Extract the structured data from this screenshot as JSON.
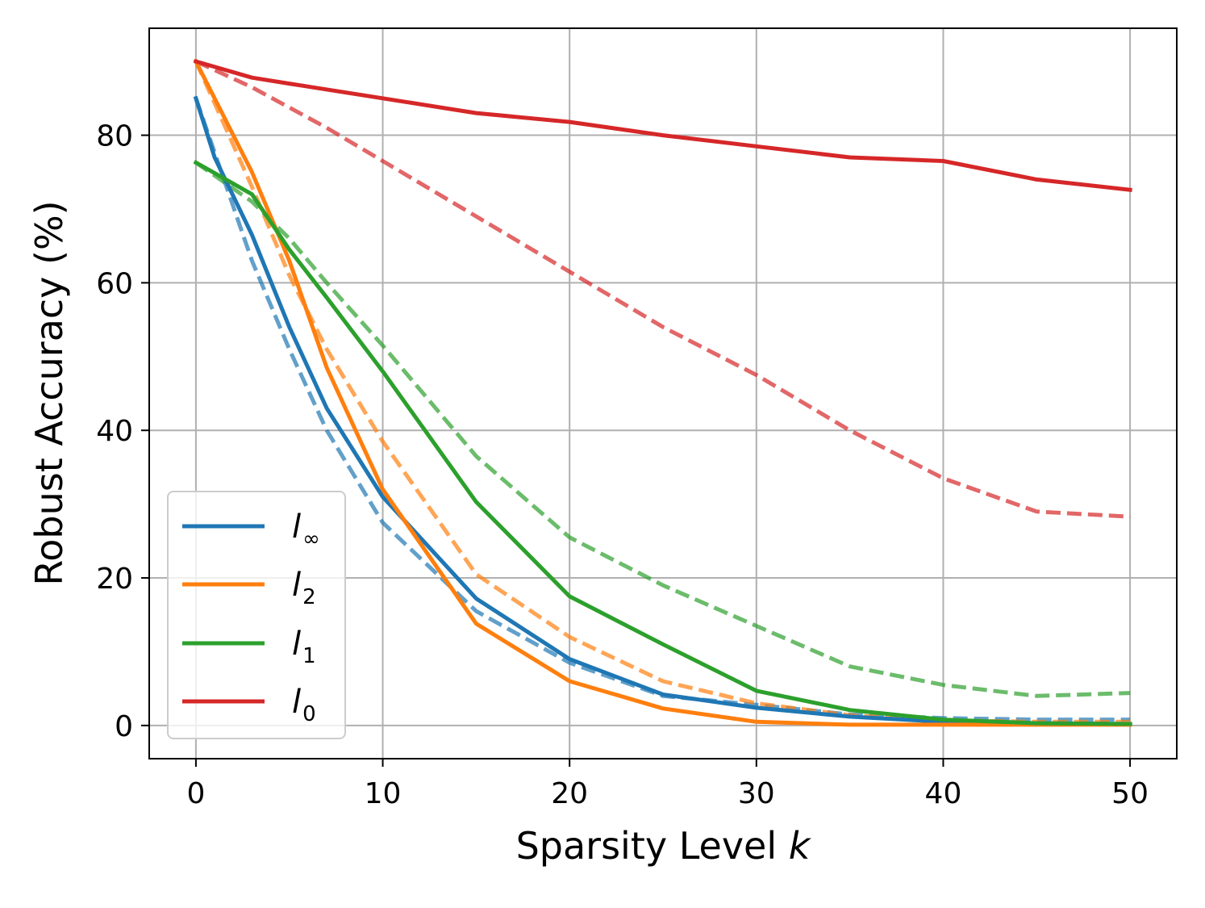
{
  "chart_data": {
    "type": "line",
    "xlabel": "Sparsity Level",
    "xlabel_var": "k",
    "ylabel": "Robust Accuracy (%)",
    "xlim": [
      -2.5,
      52.5
    ],
    "ylim": [
      -4.5,
      94.5
    ],
    "xticks": [
      0,
      10,
      20,
      30,
      40,
      50
    ],
    "yticks": [
      0,
      20,
      40,
      60,
      80
    ],
    "grid": true,
    "legend_placement": "lower-left",
    "series": [
      {
        "name": "∞",
        "color": "#1f77b4",
        "style": "solid",
        "x": [
          0,
          1,
          3,
          5,
          7,
          10,
          15,
          20,
          25,
          30,
          35,
          40,
          45,
          50
        ],
        "y": [
          85,
          77,
          66.5,
          54,
          43,
          31,
          17.2,
          9,
          4.2,
          2.4,
          1.2,
          0.5,
          0.3,
          0.2
        ]
      },
      {
        "name": "2",
        "color": "#ff7f0e",
        "style": "solid",
        "x": [
          0,
          3,
          5,
          7,
          10,
          15,
          20,
          25,
          30,
          35,
          40,
          45,
          50
        ],
        "y": [
          90,
          75,
          63,
          48.5,
          32,
          13.8,
          6,
          2.3,
          0.5,
          0.1,
          0.1,
          0.1,
          0.1
        ]
      },
      {
        "name": "1",
        "color": "#2ca02c",
        "style": "solid",
        "x": [
          0,
          3,
          5,
          7,
          10,
          15,
          20,
          25,
          30,
          35,
          40,
          45,
          50
        ],
        "y": [
          76.3,
          72,
          64.5,
          58,
          48,
          30.3,
          17.5,
          11,
          4.7,
          2.1,
          0.8,
          0.3,
          0.2
        ]
      },
      {
        "name": "0",
        "color": "#d62728",
        "style": "solid",
        "x": [
          0,
          3,
          5,
          10,
          15,
          20,
          25,
          30,
          35,
          40,
          45,
          50
        ],
        "y": [
          90,
          87.8,
          87,
          85,
          83,
          81.8,
          80,
          78.5,
          77,
          76.5,
          74,
          72.6
        ]
      },
      {
        "color": "#1f77b4",
        "style": "dashed",
        "x": [
          0,
          3,
          5,
          7,
          10,
          15,
          20,
          25,
          30,
          35,
          40,
          45,
          50
        ],
        "y": [
          85,
          63,
          51,
          40,
          27.5,
          15.5,
          8.5,
          4,
          2.8,
          1.5,
          1,
          0.8,
          0.8
        ]
      },
      {
        "color": "#ff7f0e",
        "style": "dashed",
        "x": [
          0,
          3,
          5,
          7,
          10,
          15,
          20,
          25,
          30,
          35,
          40,
          45,
          50
        ],
        "y": [
          90,
          73,
          61,
          51,
          38.5,
          20.5,
          12,
          6,
          3,
          1.4,
          0.7,
          0.5,
          0.5
        ]
      },
      {
        "color": "#2ca02c",
        "style": "dashed",
        "x": [
          0,
          3,
          5,
          7,
          10,
          15,
          20,
          25,
          30,
          35,
          40,
          45,
          50
        ],
        "y": [
          76.3,
          71,
          66,
          60,
          51.5,
          36.5,
          25.5,
          19,
          13.5,
          8,
          5.5,
          4,
          4.4
        ]
      },
      {
        "color": "#d62728",
        "style": "dashed",
        "x": [
          0,
          3,
          7,
          10,
          15,
          20,
          25,
          30,
          35,
          40,
          45,
          50
        ],
        "y": [
          90,
          86.5,
          81,
          76.5,
          69,
          61.5,
          54,
          47.5,
          40,
          33.5,
          29,
          28.3
        ]
      }
    ],
    "legend": [
      {
        "symbol": "l",
        "sub": "∞",
        "color": "#1f77b4"
      },
      {
        "symbol": "l",
        "sub": "2",
        "color": "#ff7f0e"
      },
      {
        "symbol": "l",
        "sub": "1",
        "color": "#2ca02c"
      },
      {
        "symbol": "l",
        "sub": "0",
        "color": "#d62728"
      }
    ]
  }
}
